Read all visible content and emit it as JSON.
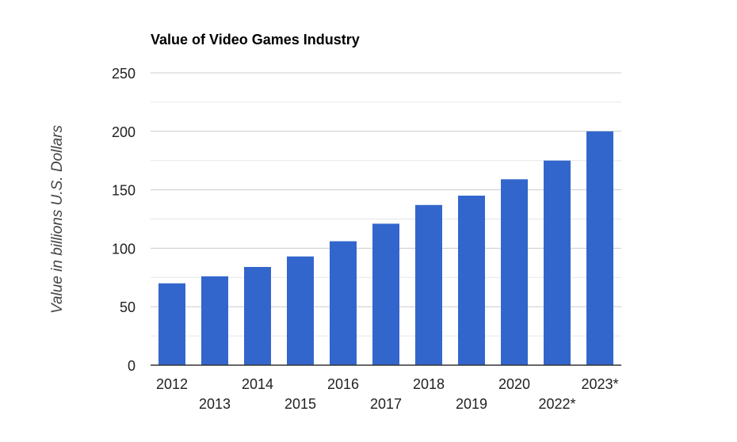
{
  "chart_data": {
    "type": "bar",
    "title": "Value of Video Games Industry",
    "xlabel": "",
    "ylabel": "Value in billions U.S. Dollars",
    "categories": [
      "2012",
      "2013",
      "2014",
      "2015",
      "2016",
      "2017",
      "2018",
      "2019",
      "2020",
      "2022*",
      "2023*"
    ],
    "values": [
      70,
      76,
      84,
      93,
      106,
      121,
      137,
      145,
      159,
      175,
      200
    ],
    "ylim": [
      0,
      250
    ],
    "yticks": [
      0,
      50,
      100,
      150,
      200,
      250
    ],
    "grid": true,
    "bar_color": "#3366cc",
    "grid_color": "#cccccc",
    "minor_grid_color": "#e6e6e6"
  }
}
